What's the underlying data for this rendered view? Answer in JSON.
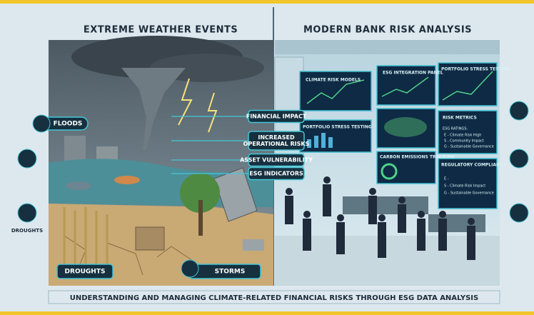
{
  "titles": {
    "left": "EXTREME WEATHER EVENTS",
    "right": "MODERN BANK RISK ANALYSIS"
  },
  "left_labels": {
    "floods": "FLOODS",
    "droughts_icon": "DROUGHTS",
    "droughts": "DROUGHTS",
    "storms": "STORMS"
  },
  "impact_labels": [
    {
      "lines": [
        "FINANCIAL IMPACT"
      ]
    },
    {
      "lines": [
        "INCREASED",
        "OPERATIONAL RISKS"
      ]
    },
    {
      "lines": [
        "ASSET VULNERABILITY"
      ]
    },
    {
      "lines": [
        "ESG INDICATORS"
      ]
    }
  ],
  "screens": {
    "climate": "CLIMATE RISK MODELS",
    "esg": "ESG INTEGRATION PANEL",
    "portfolio_top": "PORTFOLIO STRESS TESTING",
    "portfolio": "PORTFOLIO STRESS TESTING",
    "carbon": "CARBON EMISSIONS TRACKING"
  },
  "risk_metrics": {
    "title": "RISK METRICS",
    "ratings_title": "ESG RATINGS:",
    "lines": [
      "E - Climate Risk High",
      "S - Community Impact",
      "G - Sustainable Governance"
    ]
  },
  "regulatory": {
    "title": "REGULATORY COMPLIANCE",
    "lines": [
      "E -",
      "S - Climate Risk Impact",
      "G - Sustainable Governance"
    ]
  },
  "footer": "UNDERSTANDING AND MANAGING CLIMATE-RELATED FINANCIAL RISKS THROUGH ESG DATA ANALYSIS"
}
